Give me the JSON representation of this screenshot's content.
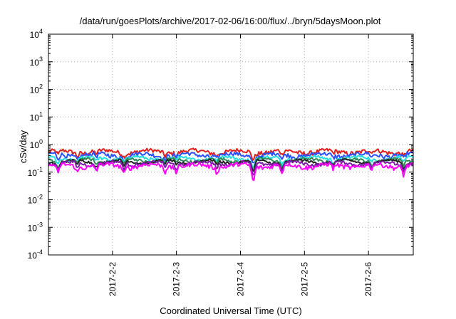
{
  "chart_data": {
    "type": "line",
    "title": "/data/run/goesPlots/archive/2017-02-06/16:00/flux/../bryn/5daysMoon.plot",
    "xlabel": "Coordinated Universal Time (UTC)",
    "ylabel": "cSv/day",
    "y_scale": "log",
    "ylim": [
      0.0001,
      10000
    ],
    "xlim": [
      0,
      5.7
    ],
    "x_unit": "days since the left edge of the axis (2017-2-1 00:00 UTC, start of the 5-day window)",
    "grid": true,
    "legend": "none",
    "y_ticks": [
      {
        "value": 0.0001,
        "base": "10",
        "exp": "-4"
      },
      {
        "value": 0.001,
        "base": "10",
        "exp": "-3"
      },
      {
        "value": 0.01,
        "base": "10",
        "exp": "-2"
      },
      {
        "value": 0.1,
        "base": "10",
        "exp": "-1"
      },
      {
        "value": 1,
        "base": "10",
        "exp": "0"
      },
      {
        "value": 10,
        "base": "10",
        "exp": "1"
      },
      {
        "value": 100,
        "base": "10",
        "exp": "2"
      },
      {
        "value": 1000,
        "base": "10",
        "exp": "3"
      },
      {
        "value": 10000,
        "base": "10",
        "exp": "4"
      }
    ],
    "x_ticks": [
      {
        "value": 1,
        "label": "2017-2-2"
      },
      {
        "value": 2,
        "label": "2017-2-3"
      },
      {
        "value": 3,
        "label": "2017-2-4"
      },
      {
        "value": 4,
        "label": "2017-2-5"
      },
      {
        "value": 5,
        "label": "2017-2-6"
      }
    ],
    "series": [
      {
        "color": "#e0201c",
        "base": 0.55,
        "amp": 0.35
      },
      {
        "color": "#2b50ff",
        "base": 0.42,
        "amp": 0.35
      },
      {
        "color": "#24e0e0",
        "base": 0.32,
        "amp": 0.25
      },
      {
        "color": "#2e8b57",
        "base": 0.27,
        "amp": 0.22
      },
      {
        "color": "#222222",
        "base": 0.24,
        "amp": 0.2
      },
      {
        "color": "#7a1fa2",
        "base": 0.21,
        "amp": 0.25
      },
      {
        "color": "#ff00ff",
        "base": 0.17,
        "amp": 0.35
      }
    ],
    "dips": [
      {
        "x": 0.15,
        "depth": 0.55,
        "width": 0.05
      },
      {
        "x": 0.45,
        "depth": 0.45,
        "width": 0.04
      },
      {
        "x": 0.75,
        "depth": 0.4,
        "width": 0.04
      },
      {
        "x": 1.18,
        "depth": 0.45,
        "width": 0.05
      },
      {
        "x": 1.82,
        "depth": 0.4,
        "width": 0.04
      },
      {
        "x": 2.0,
        "depth": 0.35,
        "width": 0.04
      },
      {
        "x": 2.63,
        "depth": 0.4,
        "width": 0.04
      },
      {
        "x": 3.2,
        "depth": 0.8,
        "width": 0.06
      },
      {
        "x": 3.65,
        "depth": 0.55,
        "width": 0.05
      },
      {
        "x": 4.45,
        "depth": 0.35,
        "width": 0.04
      },
      {
        "x": 5.05,
        "depth": 0.4,
        "width": 0.04
      },
      {
        "x": 5.55,
        "depth": 0.5,
        "width": 0.05
      }
    ]
  }
}
